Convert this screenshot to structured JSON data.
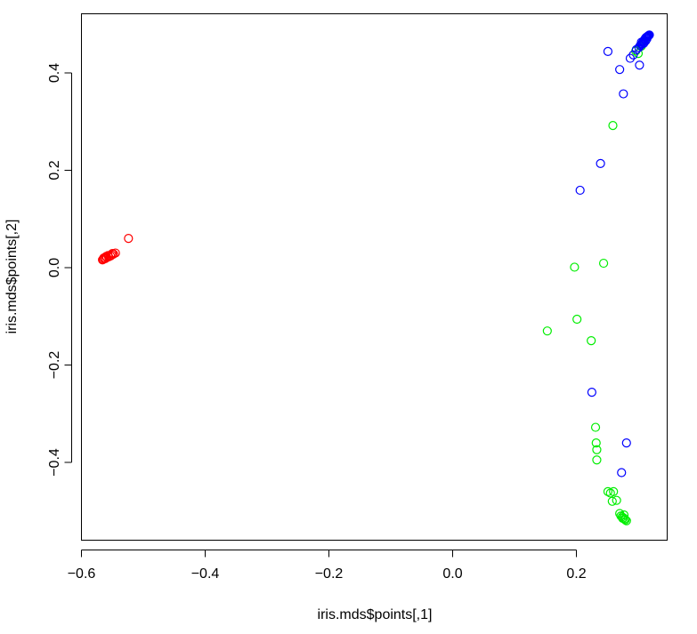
{
  "chart_data": {
    "type": "scatter",
    "title": "",
    "xlabel": "iris.mds$points[,1]",
    "ylabel": "iris.mds$points[,2]",
    "xlim": [
      -0.6,
      0.35
    ],
    "ylim": [
      -0.55,
      0.49
    ],
    "x_ticks": [
      -0.6,
      -0.4,
      -0.2,
      0.0,
      0.2
    ],
    "x_tick_labels": [
      "−0.6",
      "−0.4",
      "−0.2",
      "0.0",
      "0.2"
    ],
    "y_ticks": [
      -0.4,
      -0.2,
      0.0,
      0.2,
      0.4
    ],
    "y_tick_labels": [
      "−0.4",
      "−0.2",
      "0.0",
      "0.2",
      "0.4"
    ],
    "grid": false,
    "legend": "none",
    "series": [
      {
        "color": "#ff0000",
        "points": [
          [
            -0.524,
            0.06
          ],
          [
            -0.545,
            0.03
          ],
          [
            -0.548,
            0.028
          ],
          [
            -0.551,
            0.026
          ],
          [
            -0.553,
            0.024
          ],
          [
            -0.556,
            0.022
          ],
          [
            -0.559,
            0.021
          ],
          [
            -0.561,
            0.019
          ],
          [
            -0.563,
            0.018
          ],
          [
            -0.565,
            0.017
          ],
          [
            -0.566,
            0.016
          ],
          [
            -0.564,
            0.02
          ],
          [
            -0.56,
            0.023
          ],
          [
            -0.557,
            0.025
          ],
          [
            -0.55,
            0.029
          ]
        ]
      },
      {
        "color": "#00ee00",
        "points": [
          [
            0.259,
            0.292
          ],
          [
            0.244,
            0.009
          ],
          [
            0.197,
            0.001
          ],
          [
            0.201,
            -0.106
          ],
          [
            0.153,
            -0.13
          ],
          [
            0.224,
            -0.15
          ],
          [
            0.231,
            -0.328
          ],
          [
            0.232,
            -0.36
          ],
          [
            0.233,
            -0.374
          ],
          [
            0.233,
            -0.395
          ],
          [
            0.251,
            -0.46
          ],
          [
            0.255,
            -0.463
          ],
          [
            0.26,
            -0.46
          ],
          [
            0.258,
            -0.48
          ],
          [
            0.265,
            -0.478
          ],
          [
            0.27,
            -0.505
          ],
          [
            0.272,
            -0.51
          ],
          [
            0.274,
            -0.512
          ],
          [
            0.276,
            -0.514
          ],
          [
            0.278,
            -0.516
          ],
          [
            0.279,
            -0.518
          ],
          [
            0.281,
            -0.52
          ],
          [
            0.277,
            -0.508
          ],
          [
            0.275,
            -0.515
          ],
          [
            0.3,
            0.44
          ],
          [
            0.305,
            0.455
          ],
          [
            0.31,
            0.465
          ],
          [
            0.296,
            0.445
          ]
        ]
      },
      {
        "color": "#0000ff",
        "points": [
          [
            0.251,
            0.444
          ],
          [
            0.27,
            0.407
          ],
          [
            0.287,
            0.43
          ],
          [
            0.292,
            0.437
          ],
          [
            0.302,
            0.416
          ],
          [
            0.276,
            0.357
          ],
          [
            0.239,
            0.214
          ],
          [
            0.206,
            0.159
          ],
          [
            0.225,
            -0.256
          ],
          [
            0.281,
            -0.36
          ],
          [
            0.273,
            -0.421
          ],
          [
            0.297,
            0.448
          ],
          [
            0.301,
            0.452
          ],
          [
            0.303,
            0.456
          ],
          [
            0.305,
            0.458
          ],
          [
            0.306,
            0.46
          ],
          [
            0.307,
            0.462
          ],
          [
            0.308,
            0.464
          ],
          [
            0.309,
            0.466
          ],
          [
            0.31,
            0.468
          ],
          [
            0.311,
            0.47
          ],
          [
            0.312,
            0.472
          ],
          [
            0.313,
            0.473
          ],
          [
            0.314,
            0.474
          ],
          [
            0.315,
            0.475
          ],
          [
            0.316,
            0.476
          ],
          [
            0.317,
            0.477
          ],
          [
            0.318,
            0.478
          ],
          [
            0.314,
            0.47
          ],
          [
            0.312,
            0.466
          ],
          [
            0.309,
            0.461
          ],
          [
            0.305,
            0.463
          ]
        ]
      }
    ]
  }
}
